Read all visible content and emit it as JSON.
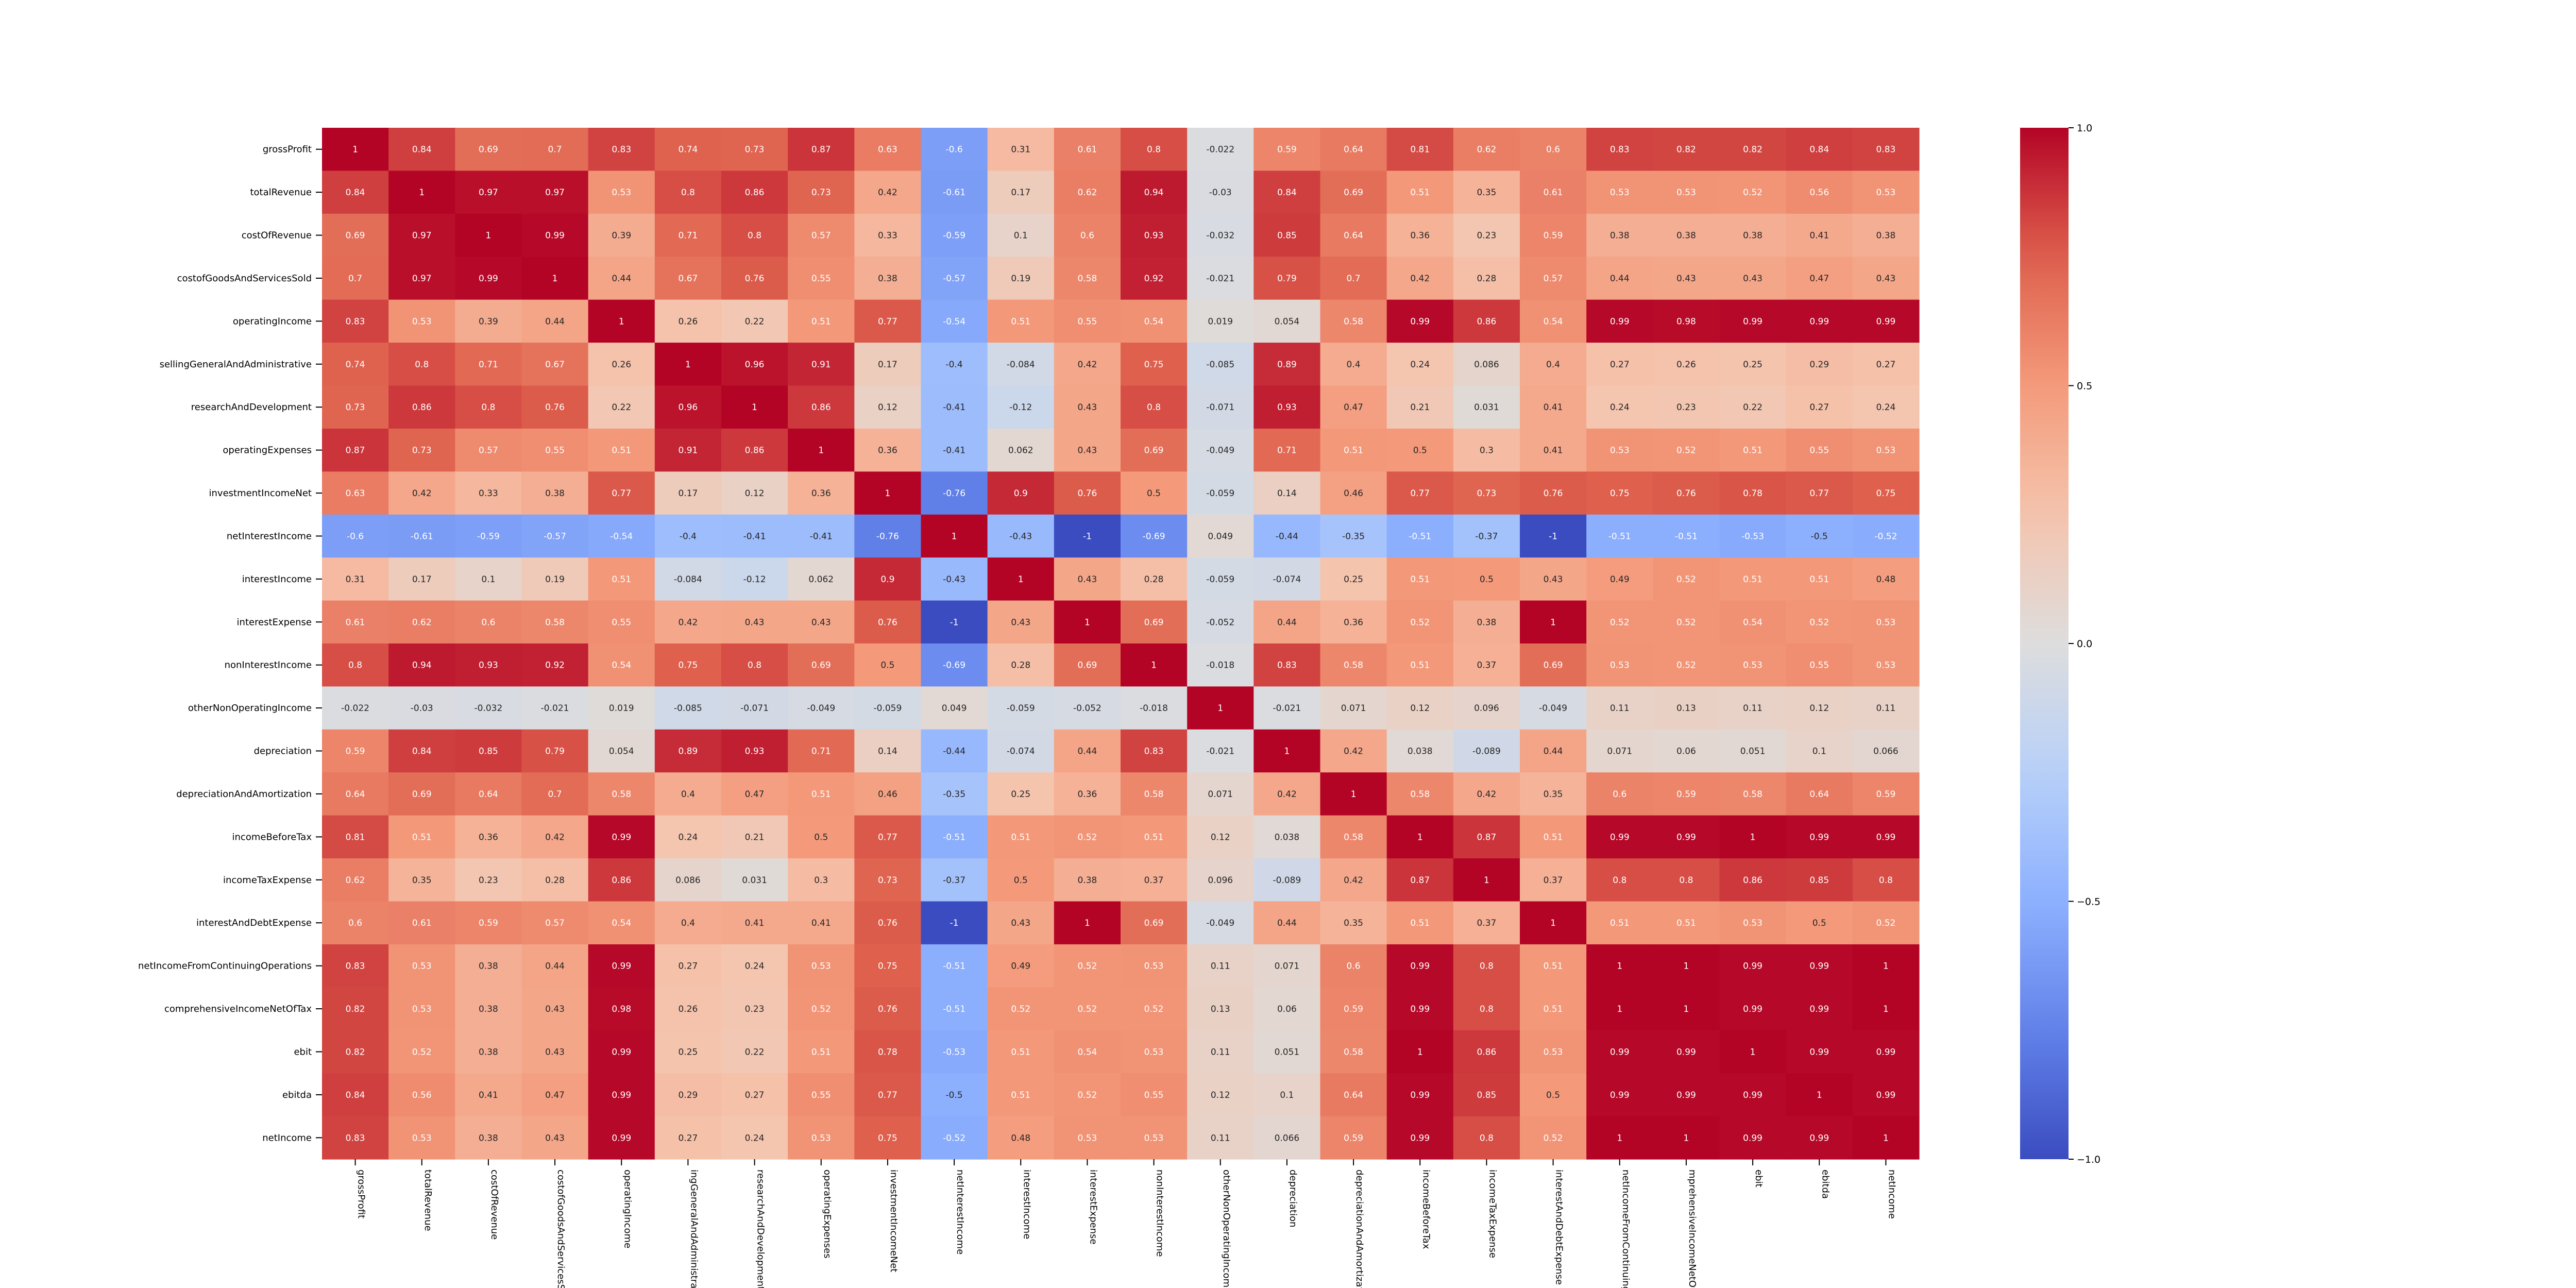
{
  "chart_data": {
    "type": "heatmap",
    "colormap": "coolwarm",
    "value_range": [
      -1,
      1
    ],
    "colorbar_ticks": [
      1.0,
      0.5,
      0.0,
      -0.5,
      -1.0
    ],
    "colorbar_tick_labels": [
      "1.0",
      "0.5",
      "0.0",
      "−0.5",
      "−1.0"
    ],
    "labels": [
      "grossProfit",
      "totalRevenue",
      "costOfRevenue",
      "costofGoodsAndServicesSold",
      "operatingIncome",
      "sellingGeneralAndAdministrative",
      "researchAndDevelopment",
      "operatingExpenses",
      "investmentIncomeNet",
      "netInterestIncome",
      "interestIncome",
      "interestExpense",
      "nonInterestIncome",
      "otherNonOperatingIncome",
      "depreciation",
      "depreciationAndAmortization",
      "incomeBeforeTax",
      "incomeTaxExpense",
      "interestAndDebtExpense",
      "netIncomeFromContinuingOperations",
      "comprehensiveIncomeNetOfTax",
      "ebit",
      "ebitda",
      "netIncome"
    ],
    "x_tick_labels": [
      "grossProfit",
      "totalRevenue",
      "costOfRevenue",
      "costofGoodsAndServicesSold",
      "operatingIncome",
      "ingGeneralAndAdministrative",
      "researchAndDevelopment",
      "operatingExpenses",
      "investmentIncomeNet",
      "netInterestIncome",
      "interestIncome",
      "interestExpense",
      "nonInterestIncome",
      "otherNonOperatingIncome",
      "depreciation",
      "depreciationAndAmortization",
      "incomeBeforeTax",
      "incomeTaxExpense",
      "interestAndDebtExpense",
      "netIncomeFromContinuingOperations",
      "mprehensiveIncomeNetOfTax",
      "ebit",
      "ebitda",
      "netIncome"
    ],
    "matrix": [
      [
        "1",
        "0.84",
        "0.69",
        "0.7",
        "0.83",
        "0.74",
        "0.73",
        "0.87",
        "0.63",
        "-0.6",
        "0.31",
        "0.61",
        "0.8",
        "-0.022",
        "0.59",
        "0.64",
        "0.81",
        "0.62",
        "0.6",
        "0.83",
        "0.82",
        "0.82",
        "0.84",
        "0.83"
      ],
      [
        "0.84",
        "1",
        "0.97",
        "0.97",
        "0.53",
        "0.8",
        "0.86",
        "0.73",
        "0.42",
        "-0.61",
        "0.17",
        "0.62",
        "0.94",
        "-0.03",
        "0.84",
        "0.69",
        "0.51",
        "0.35",
        "0.61",
        "0.53",
        "0.53",
        "0.52",
        "0.56",
        "0.53"
      ],
      [
        "0.69",
        "0.97",
        "1",
        "0.99",
        "0.39",
        "0.71",
        "0.8",
        "0.57",
        "0.33",
        "-0.59",
        "0.1",
        "0.6",
        "0.93",
        "-0.032",
        "0.85",
        "0.64",
        "0.36",
        "0.23",
        "0.59",
        "0.38",
        "0.38",
        "0.38",
        "0.41",
        "0.38"
      ],
      [
        "0.7",
        "0.97",
        "0.99",
        "1",
        "0.44",
        "0.67",
        "0.76",
        "0.55",
        "0.38",
        "-0.57",
        "0.19",
        "0.58",
        "0.92",
        "-0.021",
        "0.79",
        "0.7",
        "0.42",
        "0.28",
        "0.57",
        "0.44",
        "0.43",
        "0.43",
        "0.47",
        "0.43"
      ],
      [
        "0.83",
        "0.53",
        "0.39",
        "0.44",
        "1",
        "0.26",
        "0.22",
        "0.51",
        "0.77",
        "-0.54",
        "0.51",
        "0.55",
        "0.54",
        "0.019",
        "0.054",
        "0.58",
        "0.99",
        "0.86",
        "0.54",
        "0.99",
        "0.98",
        "0.99",
        "0.99",
        "0.99"
      ],
      [
        "0.74",
        "0.8",
        "0.71",
        "0.67",
        "0.26",
        "1",
        "0.96",
        "0.91",
        "0.17",
        "-0.4",
        "-0.084",
        "0.42",
        "0.75",
        "-0.085",
        "0.89",
        "0.4",
        "0.24",
        "0.086",
        "0.4",
        "0.27",
        "0.26",
        "0.25",
        "0.29",
        "0.27"
      ],
      [
        "0.73",
        "0.86",
        "0.8",
        "0.76",
        "0.22",
        "0.96",
        "1",
        "0.86",
        "0.12",
        "-0.41",
        "-0.12",
        "0.43",
        "0.8",
        "-0.071",
        "0.93",
        "0.47",
        "0.21",
        "0.031",
        "0.41",
        "0.24",
        "0.23",
        "0.22",
        "0.27",
        "0.24"
      ],
      [
        "0.87",
        "0.73",
        "0.57",
        "0.55",
        "0.51",
        "0.91",
        "0.86",
        "1",
        "0.36",
        "-0.41",
        "0.062",
        "0.43",
        "0.69",
        "-0.049",
        "0.71",
        "0.51",
        "0.5",
        "0.3",
        "0.41",
        "0.53",
        "0.52",
        "0.51",
        "0.55",
        "0.53"
      ],
      [
        "0.63",
        "0.42",
        "0.33",
        "0.38",
        "0.77",
        "0.17",
        "0.12",
        "0.36",
        "1",
        "-0.76",
        "0.9",
        "0.76",
        "0.5",
        "-0.059",
        "0.14",
        "0.46",
        "0.77",
        "0.73",
        "0.76",
        "0.75",
        "0.76",
        "0.78",
        "0.77",
        "0.75"
      ],
      [
        "-0.6",
        "-0.61",
        "-0.59",
        "-0.57",
        "-0.54",
        "-0.4",
        "-0.41",
        "-0.41",
        "-0.76",
        "1",
        "-0.43",
        "-1",
        "-0.69",
        "0.049",
        "-0.44",
        "-0.35",
        "-0.51",
        "-0.37",
        "-1",
        "-0.51",
        "-0.51",
        "-0.53",
        "-0.5",
        "-0.52"
      ],
      [
        "0.31",
        "0.17",
        "0.1",
        "0.19",
        "0.51",
        "-0.084",
        "-0.12",
        "0.062",
        "0.9",
        "-0.43",
        "1",
        "0.43",
        "0.28",
        "-0.059",
        "-0.074",
        "0.25",
        "0.51",
        "0.5",
        "0.43",
        "0.49",
        "0.52",
        "0.51",
        "0.51",
        "0.48"
      ],
      [
        "0.61",
        "0.62",
        "0.6",
        "0.58",
        "0.55",
        "0.42",
        "0.43",
        "0.43",
        "0.76",
        "-1",
        "0.43",
        "1",
        "0.69",
        "-0.052",
        "0.44",
        "0.36",
        "0.52",
        "0.38",
        "1",
        "0.52",
        "0.52",
        "0.54",
        "0.52",
        "0.53"
      ],
      [
        "0.8",
        "0.94",
        "0.93",
        "0.92",
        "0.54",
        "0.75",
        "0.8",
        "0.69",
        "0.5",
        "-0.69",
        "0.28",
        "0.69",
        "1",
        "-0.018",
        "0.83",
        "0.58",
        "0.51",
        "0.37",
        "0.69",
        "0.53",
        "0.52",
        "0.53",
        "0.55",
        "0.53"
      ],
      [
        "-0.022",
        "-0.03",
        "-0.032",
        "-0.021",
        "0.019",
        "-0.085",
        "-0.071",
        "-0.049",
        "-0.059",
        "0.049",
        "-0.059",
        "-0.052",
        "-0.018",
        "1",
        "-0.021",
        "0.071",
        "0.12",
        "0.096",
        "-0.049",
        "0.11",
        "0.13",
        "0.11",
        "0.12",
        "0.11"
      ],
      [
        "0.59",
        "0.84",
        "0.85",
        "0.79",
        "0.054",
        "0.89",
        "0.93",
        "0.71",
        "0.14",
        "-0.44",
        "-0.074",
        "0.44",
        "0.83",
        "-0.021",
        "1",
        "0.42",
        "0.038",
        "-0.089",
        "0.44",
        "0.071",
        "0.06",
        "0.051",
        "0.1",
        "0.066"
      ],
      [
        "0.64",
        "0.69",
        "0.64",
        "0.7",
        "0.58",
        "0.4",
        "0.47",
        "0.51",
        "0.46",
        "-0.35",
        "0.25",
        "0.36",
        "0.58",
        "0.071",
        "0.42",
        "1",
        "0.58",
        "0.42",
        "0.35",
        "0.6",
        "0.59",
        "0.58",
        "0.64",
        "0.59"
      ],
      [
        "0.81",
        "0.51",
        "0.36",
        "0.42",
        "0.99",
        "0.24",
        "0.21",
        "0.5",
        "0.77",
        "-0.51",
        "0.51",
        "0.52",
        "0.51",
        "0.12",
        "0.038",
        "0.58",
        "1",
        "0.87",
        "0.51",
        "0.99",
        "0.99",
        "1",
        "0.99",
        "0.99"
      ],
      [
        "0.62",
        "0.35",
        "0.23",
        "0.28",
        "0.86",
        "0.086",
        "0.031",
        "0.3",
        "0.73",
        "-0.37",
        "0.5",
        "0.38",
        "0.37",
        "0.096",
        "-0.089",
        "0.42",
        "0.87",
        "1",
        "0.37",
        "0.8",
        "0.8",
        "0.86",
        "0.85",
        "0.8"
      ],
      [
        "0.6",
        "0.61",
        "0.59",
        "0.57",
        "0.54",
        "0.4",
        "0.41",
        "0.41",
        "0.76",
        "-1",
        "0.43",
        "1",
        "0.69",
        "-0.049",
        "0.44",
        "0.35",
        "0.51",
        "0.37",
        "1",
        "0.51",
        "0.51",
        "0.53",
        "0.5",
        "0.52"
      ],
      [
        "0.83",
        "0.53",
        "0.38",
        "0.44",
        "0.99",
        "0.27",
        "0.24",
        "0.53",
        "0.75",
        "-0.51",
        "0.49",
        "0.52",
        "0.53",
        "0.11",
        "0.071",
        "0.6",
        "0.99",
        "0.8",
        "0.51",
        "1",
        "1",
        "0.99",
        "0.99",
        "1"
      ],
      [
        "0.82",
        "0.53",
        "0.38",
        "0.43",
        "0.98",
        "0.26",
        "0.23",
        "0.52",
        "0.76",
        "-0.51",
        "0.52",
        "0.52",
        "0.52",
        "0.13",
        "0.06",
        "0.59",
        "0.99",
        "0.8",
        "0.51",
        "1",
        "1",
        "0.99",
        "0.99",
        "1"
      ],
      [
        "0.82",
        "0.52",
        "0.38",
        "0.43",
        "0.99",
        "0.25",
        "0.22",
        "0.51",
        "0.78",
        "-0.53",
        "0.51",
        "0.54",
        "0.53",
        "0.11",
        "0.051",
        "0.58",
        "1",
        "0.86",
        "0.53",
        "0.99",
        "0.99",
        "1",
        "0.99",
        "0.99"
      ],
      [
        "0.84",
        "0.56",
        "0.41",
        "0.47",
        "0.99",
        "0.29",
        "0.27",
        "0.55",
        "0.77",
        "-0.5",
        "0.51",
        "0.52",
        "0.55",
        "0.12",
        "0.1",
        "0.64",
        "0.99",
        "0.85",
        "0.5",
        "0.99",
        "0.99",
        "0.99",
        "1",
        "0.99"
      ],
      [
        "0.83",
        "0.53",
        "0.38",
        "0.43",
        "0.99",
        "0.27",
        "0.24",
        "0.53",
        "0.75",
        "-0.52",
        "0.48",
        "0.53",
        "0.53",
        "0.11",
        "0.066",
        "0.59",
        "0.99",
        "0.8",
        "0.52",
        "1",
        "1",
        "0.99",
        "0.99",
        "1"
      ]
    ]
  }
}
